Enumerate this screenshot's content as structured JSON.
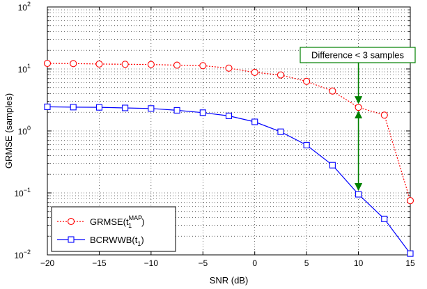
{
  "chart_data": {
    "type": "line",
    "xlabel": "SNR (dB)",
    "ylabel": "GRMSE (samples)",
    "xlim": [
      -20,
      15
    ],
    "ylim": [
      0.01,
      100
    ],
    "yscale": "log",
    "grid": true,
    "x_ticks": [
      {
        "value": -20,
        "label": "−20"
      },
      {
        "value": -15,
        "label": "−15"
      },
      {
        "value": -10,
        "label": "−10"
      },
      {
        "value": -5,
        "label": "−5"
      },
      {
        "value": 0,
        "label": "0"
      },
      {
        "value": 5,
        "label": "5"
      },
      {
        "value": 10,
        "label": "10"
      },
      {
        "value": 15,
        "label": "15"
      }
    ],
    "y_ticks": [
      {
        "value": 0.01,
        "base": "10",
        "exp": "−2"
      },
      {
        "value": 0.1,
        "base": "10",
        "exp": "−1"
      },
      {
        "value": 1,
        "base": "10",
        "exp": "0"
      },
      {
        "value": 10,
        "base": "10",
        "exp": "1"
      },
      {
        "value": 100,
        "base": "10",
        "exp": "2"
      }
    ],
    "x": [
      -20,
      -17.5,
      -15,
      -12.5,
      -10,
      -7.5,
      -5,
      -2.5,
      0,
      2.5,
      5,
      7.5,
      10,
      12.5,
      15
    ],
    "series": [
      {
        "name": "GRMSE(t₁ᴹᴬᴾ)",
        "legend": {
          "main": "GRMSE(t",
          "sub": "1",
          "sup": "MAP",
          "close": ")"
        },
        "color": "#ff0000",
        "line_style": "dotted",
        "marker": "circle",
        "values": [
          12.3,
          12.2,
          12.0,
          11.9,
          11.8,
          11.5,
          11.3,
          10.3,
          8.8,
          8.0,
          6.3,
          4.4,
          2.4,
          1.8,
          0.075
        ]
      },
      {
        "name": "BCRWWB(t₁)",
        "legend": {
          "main": "BCRWWB(t",
          "sub": "1",
          "sup": "",
          "close": ")"
        },
        "color": "#0000ff",
        "line_style": "solid",
        "marker": "square",
        "values": [
          2.45,
          2.42,
          2.4,
          2.35,
          2.3,
          2.15,
          1.97,
          1.75,
          1.4,
          0.97,
          0.59,
          0.28,
          0.095,
          0.038,
          0.0105
        ]
      }
    ],
    "legend_position": "bottom-left",
    "annotation": {
      "text": "Difference < 3 samples",
      "color": "#008000",
      "at_x": 10,
      "from_y": 0.095,
      "to_y": 2.4
    }
  }
}
